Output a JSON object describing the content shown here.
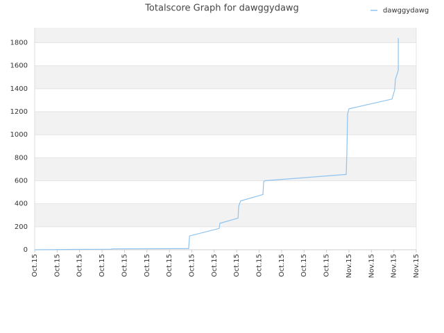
{
  "chart_data": {
    "type": "line",
    "title": "Totalscore Graph for dawggydawg",
    "xlim": [
      0,
      17
    ],
    "ylim": [
      0,
      1930
    ],
    "xticks": [
      {
        "value": 0,
        "label": "Oct.15"
      },
      {
        "value": 1,
        "label": "Oct.15"
      },
      {
        "value": 2,
        "label": "Oct.15"
      },
      {
        "value": 3,
        "label": "Oct.15"
      },
      {
        "value": 4,
        "label": "Oct.15"
      },
      {
        "value": 5,
        "label": "Oct.15"
      },
      {
        "value": 6,
        "label": "Oct.15"
      },
      {
        "value": 7,
        "label": "Oct.15"
      },
      {
        "value": 8,
        "label": "Oct.15"
      },
      {
        "value": 9,
        "label": "Oct.15"
      },
      {
        "value": 10,
        "label": "Oct.15"
      },
      {
        "value": 11,
        "label": "Oct.15"
      },
      {
        "value": 12,
        "label": "Oct.15"
      },
      {
        "value": 13,
        "label": "Oct.15"
      },
      {
        "value": 14,
        "label": "Nov.15"
      },
      {
        "value": 15,
        "label": "Nov.15"
      },
      {
        "value": 16,
        "label": "Nov.15"
      },
      {
        "value": 17,
        "label": "Nov.15"
      }
    ],
    "yticks": [
      0,
      200,
      400,
      600,
      800,
      1000,
      1200,
      1400,
      1600,
      1800
    ],
    "grid": true,
    "legend": "top-right",
    "series": [
      {
        "name": "dawggydawg",
        "color": "#8ec3f0",
        "x": [
          0,
          3.4,
          3.46,
          6.86,
          6.9,
          8.22,
          8.25,
          9.06,
          9.09,
          9.18,
          10.17,
          10.2,
          10.26,
          13.88,
          13.91,
          13.94,
          14.0,
          15.92,
          16.04,
          16.07,
          16.2,
          16.2
        ],
        "values": [
          0,
          5,
          8,
          10,
          120,
          185,
          230,
          275,
          380,
          425,
          480,
          590,
          600,
          655,
          850,
          1180,
          1225,
          1310,
          1390,
          1480,
          1560,
          1840
        ]
      }
    ]
  }
}
